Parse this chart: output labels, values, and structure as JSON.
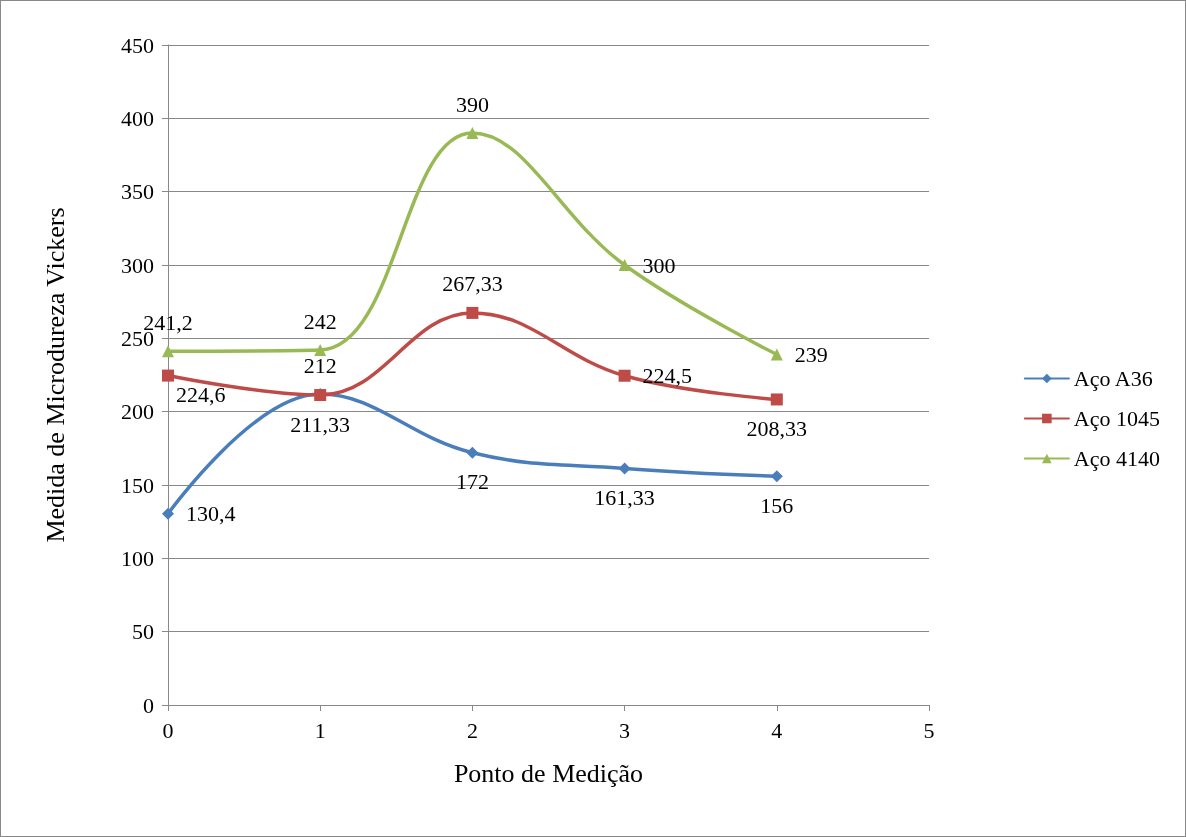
{
  "chart_data": {
    "type": "line",
    "xlabel": "Ponto de Medição",
    "ylabel": "Medida de Microdureza Vickers",
    "x": [
      0,
      1,
      2,
      3,
      4
    ],
    "xlim": [
      0,
      5
    ],
    "xticks": [
      0,
      1,
      2,
      3,
      4,
      5
    ],
    "ylim": [
      0,
      450
    ],
    "yticks": [
      0,
      50,
      100,
      150,
      200,
      250,
      300,
      350,
      400,
      450
    ],
    "grid": "y",
    "legend": "right",
    "line_style": "solid",
    "series": [
      {
        "name": "Aço A36",
        "color": "#4a7ebb",
        "marker": "diamond",
        "values": [
          130.4,
          212,
          172,
          161.33,
          156
        ],
        "value_labels": [
          "130,4",
          "212",
          "172",
          "161,33",
          "156"
        ]
      },
      {
        "name": "Aço 1045",
        "color": "#be4b48",
        "marker": "square",
        "values": [
          224.6,
          211.33,
          267.33,
          224.5,
          208.33
        ],
        "value_labels": [
          "224,6",
          "211,33",
          "267,33",
          "224,5",
          "208,33"
        ]
      },
      {
        "name": "Aço 4140",
        "color": "#98b954",
        "marker": "triangle",
        "values": [
          241.2,
          242,
          390,
          300,
          239
        ],
        "value_labels": [
          "241,2",
          "242",
          "390",
          "300",
          "239"
        ]
      }
    ]
  }
}
